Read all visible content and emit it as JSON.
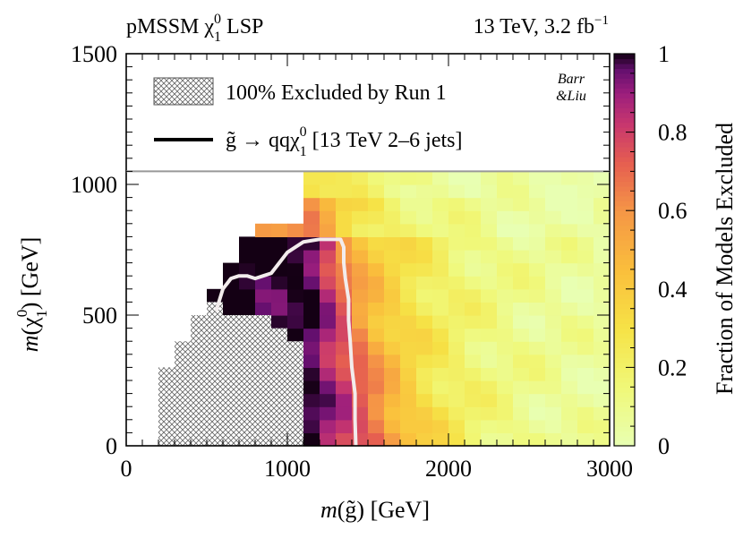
{
  "chart_data": {
    "type": "heatmap",
    "title_left_main": "pMSSM",
    "title_left_particle": "χ",
    "title_left_sup": "0",
    "title_left_sub": "1",
    "title_left_end": "LSP",
    "title_right_main": "13 TeV, 3.2 fb",
    "title_right_sup": "−1",
    "xlabel": {
      "m": "m",
      "rest": "(g̃) [GeV]"
    },
    "ylabel": {
      "m": "m",
      "open": "(",
      "particle": "χ",
      "sup": "0",
      "sub": "1",
      "close": ") [GeV]"
    },
    "zlabel": "Fraction of Models Excluded",
    "xlim": [
      0,
      3000
    ],
    "ylim": [
      0,
      1500
    ],
    "zlim": [
      0,
      1
    ],
    "x_ticks": [
      "0",
      "1000",
      "2000",
      "3000"
    ],
    "y_ticks": [
      "0",
      "500",
      "1000",
      "1500"
    ],
    "z_ticks": [
      "0",
      "0.2",
      "0.4",
      "0.6",
      "0.8",
      "1"
    ],
    "legend": {
      "position": "top",
      "hatched_label": "100% Excluded by Run 1",
      "line_label_pre": "→ qq",
      "line_label_g": "g̃",
      "line_label_particle": "χ",
      "line_label_sup": "0",
      "line_label_sub": "1",
      "line_label_post": "[13 TeV 2–6 jets]",
      "watermark_line1": "Barr",
      "watermark_line2": "&Liu"
    },
    "grid": {
      "x_bin_width": 100,
      "y_bin_width": 50,
      "x_start": 1100,
      "x_end": 3000,
      "y_start": 0,
      "y_end": 1050
    },
    "excluded_region_run1": [
      [
        200,
        0
      ],
      [
        200,
        300
      ],
      [
        300,
        300
      ],
      [
        300,
        400
      ],
      [
        400,
        400
      ],
      [
        400,
        500
      ],
      [
        500,
        500
      ],
      [
        500,
        550
      ],
      [
        600,
        550
      ],
      [
        600,
        500
      ],
      [
        900,
        500
      ],
      [
        900,
        450
      ],
      [
        1000,
        450
      ],
      [
        1000,
        400
      ],
      [
        1100,
        400
      ],
      [
        1100,
        0
      ]
    ],
    "contour_2_6_jets": [
      [
        560,
        520
      ],
      [
        600,
        600
      ],
      [
        650,
        640
      ],
      [
        700,
        650
      ],
      [
        750,
        650
      ],
      [
        800,
        640
      ],
      [
        850,
        650
      ],
      [
        900,
        660
      ],
      [
        950,
        700
      ],
      [
        1000,
        740
      ],
      [
        1050,
        760
      ],
      [
        1100,
        780
      ],
      [
        1150,
        785
      ],
      [
        1200,
        790
      ],
      [
        1250,
        790
      ],
      [
        1300,
        790
      ],
      [
        1330,
        790
      ],
      [
        1350,
        760
      ],
      [
        1350,
        700
      ],
      [
        1360,
        640
      ],
      [
        1380,
        560
      ],
      [
        1380,
        480
      ],
      [
        1390,
        400
      ],
      [
        1400,
        300
      ],
      [
        1420,
        200
      ],
      [
        1420,
        100
      ],
      [
        1425,
        0
      ]
    ],
    "frac_model": "Fraction excluded decreases with gluino mass from 1.0 near 1100 GeV to ~0.05 at 3000 GeV; neutralino mass dependence weaker."
  }
}
